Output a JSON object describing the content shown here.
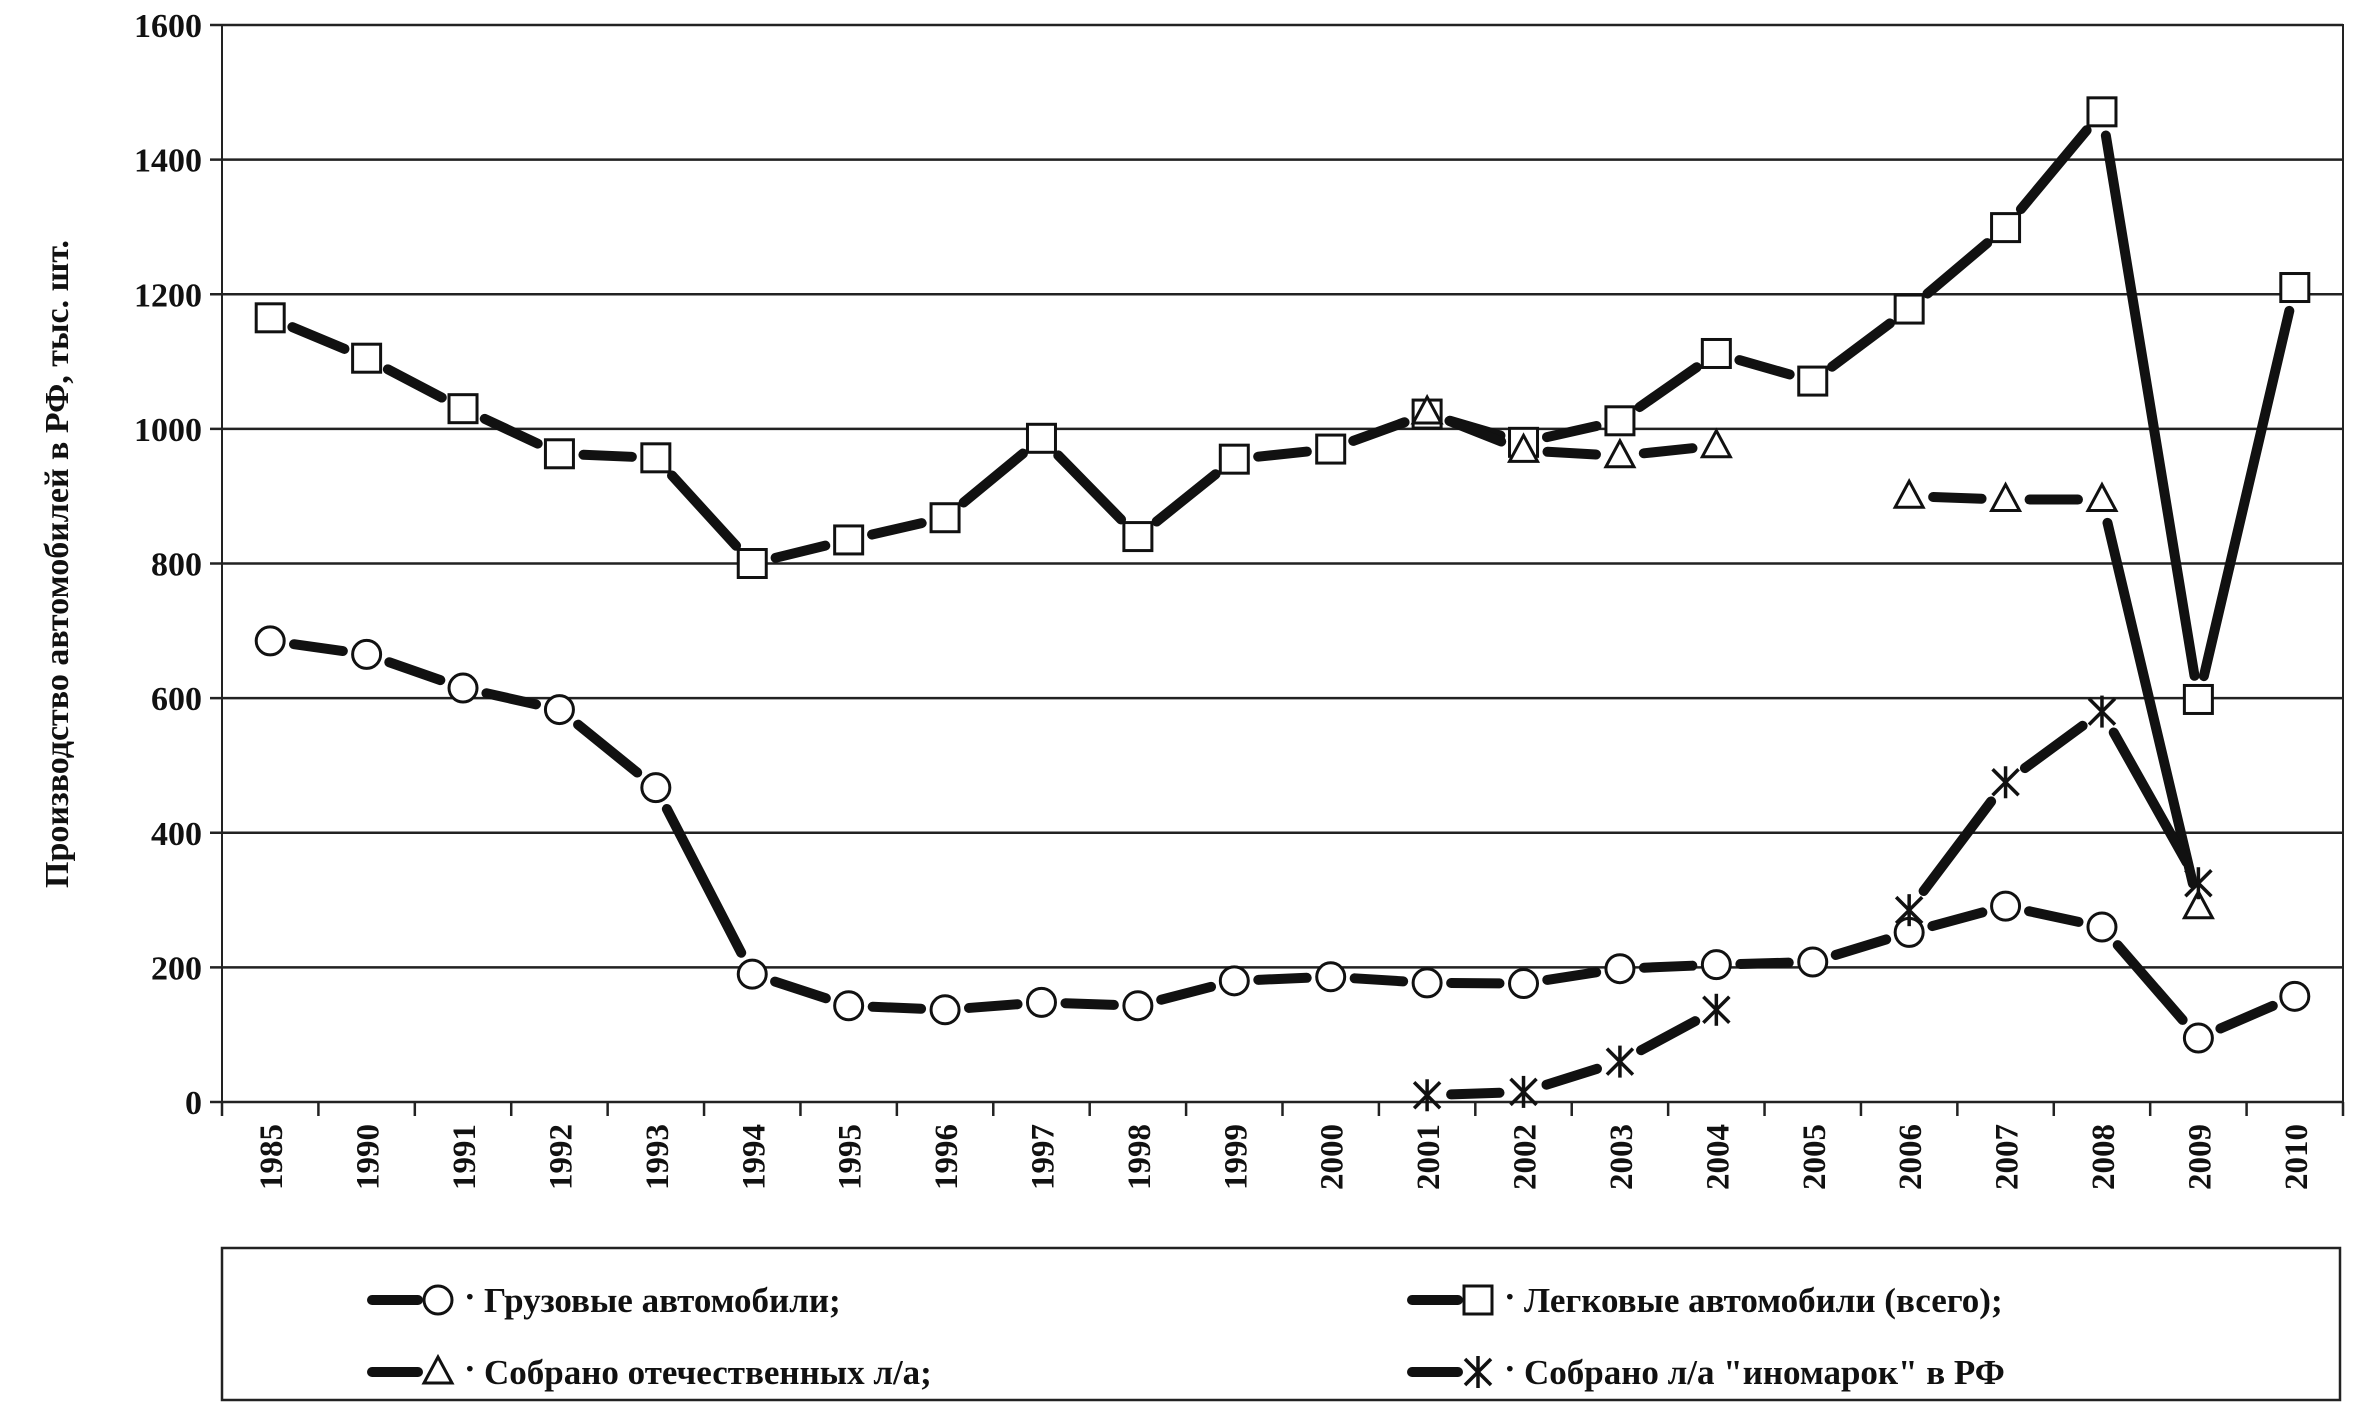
{
  "chart_data": {
    "type": "line",
    "ylabel": "Производство автомобилей в РФ, тыс. шт.",
    "xlabel": "",
    "ylim": [
      0,
      1600
    ],
    "yticks": [
      0,
      200,
      400,
      600,
      800,
      1000,
      1200,
      1400,
      1600
    ],
    "categories": [
      "1985",
      "1990",
      "1991",
      "1992",
      "1993",
      "1994",
      "1995",
      "1996",
      "1997",
      "1998",
      "1999",
      "2000",
      "2001",
      "2002",
      "2003",
      "2004",
      "2005",
      "2006",
      "2007",
      "2008",
      "2009",
      "2010"
    ],
    "grid": "horizontal",
    "legend_position": "bottom",
    "series": [
      {
        "name": "Грузовые автомобили;",
        "marker": "circle",
        "values": [
          685,
          665,
          615,
          583,
          467,
          190,
          143,
          137,
          148,
          143,
          180,
          186,
          177,
          176,
          198,
          204,
          208,
          252,
          291,
          260,
          95,
          157
        ]
      },
      {
        "name": "Легковые автомобили (всего);",
        "marker": "square",
        "values": [
          1165,
          1105,
          1030,
          963,
          957,
          800,
          835,
          868,
          986,
          840,
          955,
          970,
          1022,
          980,
          1012,
          1112,
          1071,
          1178,
          1299,
          1471,
          598,
          1210
        ]
      },
      {
        "name": "Собрано отечественных л/а;",
        "marker": "triangle",
        "values": [
          null,
          null,
          null,
          null,
          null,
          null,
          null,
          null,
          null,
          null,
          null,
          null,
          1025,
          968,
          960,
          975,
          null,
          900,
          895,
          895,
          290,
          null
        ]
      },
      {
        "name": "Собрано л/а \"иномарок\" в РФ",
        "marker": "star",
        "values": [
          null,
          null,
          null,
          null,
          null,
          null,
          null,
          null,
          null,
          null,
          null,
          null,
          10,
          15,
          60,
          137,
          null,
          285,
          475,
          580,
          325,
          null
        ]
      }
    ]
  }
}
